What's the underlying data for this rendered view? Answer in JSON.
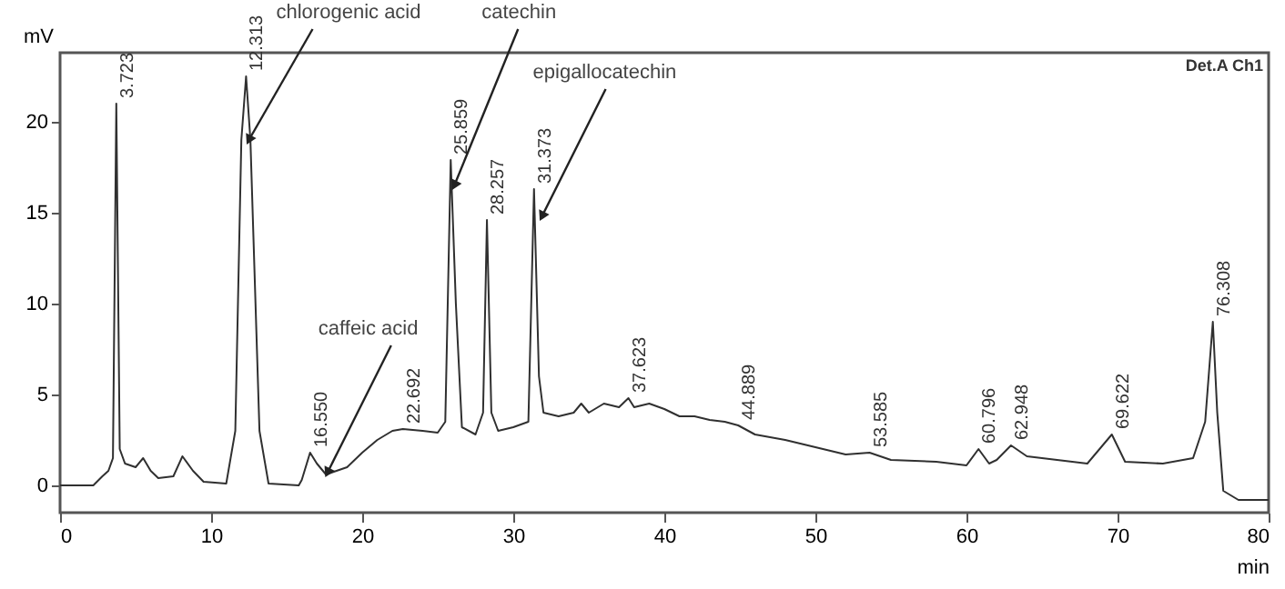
{
  "chart_data": {
    "type": "line",
    "xlabel": "min",
    "ylabel": "mV",
    "xlim": [
      0,
      80
    ],
    "xticks": [
      0,
      10,
      20,
      30,
      40,
      50,
      60,
      70,
      80
    ],
    "ylim": [
      -1.5,
      23.8
    ],
    "yticks": [
      0,
      5,
      10,
      15,
      20
    ],
    "grid": false,
    "marker": "none",
    "line_style": "solid",
    "series": [
      {
        "color": "#303030",
        "x": [
          0,
          2.2,
          2.8,
          3.2,
          3.5,
          3.723,
          3.95,
          4.3,
          5,
          5.5,
          6,
          6.5,
          7.5,
          8.1,
          8.8,
          9.5,
          11,
          11.6,
          12.0,
          12.313,
          12.6,
          13.2,
          13.8,
          15.8,
          16,
          16.55,
          17.0,
          17.6,
          19,
          20,
          21,
          22,
          22.692,
          24,
          25,
          25.5,
          25.859,
          26.2,
          26.6,
          27.5,
          28.0,
          28.257,
          28.55,
          29,
          30,
          31,
          31.373,
          31.7,
          32,
          33,
          34,
          34.5,
          35,
          36,
          37,
          37.623,
          38,
          39,
          40,
          41,
          42,
          43,
          44,
          44.889,
          46,
          48,
          50,
          52,
          53.585,
          55,
          58,
          60,
          60.796,
          61.5,
          62,
          62.948,
          64,
          66,
          68,
          69.622,
          70.5,
          73,
          75,
          75.8,
          76.308,
          76.6,
          77,
          78,
          80
        ],
        "values": [
          0,
          0,
          0.5,
          0.8,
          1.5,
          21,
          2,
          1.2,
          1,
          1.5,
          0.8,
          0.4,
          0.5,
          1.6,
          0.8,
          0.2,
          0.1,
          3,
          19,
          22.5,
          19,
          3,
          0.1,
          0,
          0.3,
          1.8,
          1.2,
          0.6,
          1,
          1.8,
          2.5,
          3,
          3.1,
          3,
          2.9,
          3.5,
          17.9,
          10,
          3.2,
          2.8,
          4,
          14.6,
          4,
          3,
          3.2,
          3.5,
          16.3,
          6,
          4,
          3.8,
          4,
          4.5,
          4,
          4.5,
          4.3,
          4.8,
          4.3,
          4.5,
          4.2,
          3.8,
          3.8,
          3.6,
          3.5,
          3.3,
          2.8,
          2.5,
          2.1,
          1.7,
          1.8,
          1.4,
          1.3,
          1.1,
          2,
          1.2,
          1.4,
          2.2,
          1.6,
          1.4,
          1.2,
          2.8,
          1.3,
          1.2,
          1.5,
          3.5,
          9,
          4,
          -0.3,
          -0.8,
          -0.8
        ]
      }
    ],
    "annotations": [
      {
        "text": "3.723",
        "x": 3.723,
        "y": 21
      },
      {
        "text": "12.313",
        "x": 12.313,
        "y": 22.5
      },
      {
        "text": "16.550",
        "x": 16.55,
        "y": 1.8
      },
      {
        "text": "22.692",
        "x": 22.692,
        "y": 3.1
      },
      {
        "text": "25.859",
        "x": 25.859,
        "y": 17.9
      },
      {
        "text": "28.257",
        "x": 28.257,
        "y": 14.6
      },
      {
        "text": "31.373",
        "x": 31.373,
        "y": 16.3
      },
      {
        "text": "37.623",
        "x": 37.623,
        "y": 4.8
      },
      {
        "text": "44.889",
        "x": 44.889,
        "y": 3.3
      },
      {
        "text": "53.585",
        "x": 53.585,
        "y": 1.8
      },
      {
        "text": "60.796",
        "x": 60.796,
        "y": 2
      },
      {
        "text": "62.948",
        "x": 62.948,
        "y": 2.2
      },
      {
        "text": "69.622",
        "x": 69.622,
        "y": 2.8
      },
      {
        "text": "76.308",
        "x": 76.308,
        "y": 9
      },
      {
        "text": "chlorogenic acid",
        "x": 12.5,
        "y": 19
      },
      {
        "text": "caffeic acid",
        "x": 17.7,
        "y": 0.7
      },
      {
        "text": "catechin",
        "x": 26.1,
        "y": 16.5
      },
      {
        "text": "epigallocatechin",
        "x": 31.9,
        "y": 14.8
      },
      "Det.A Ch1"
    ]
  }
}
